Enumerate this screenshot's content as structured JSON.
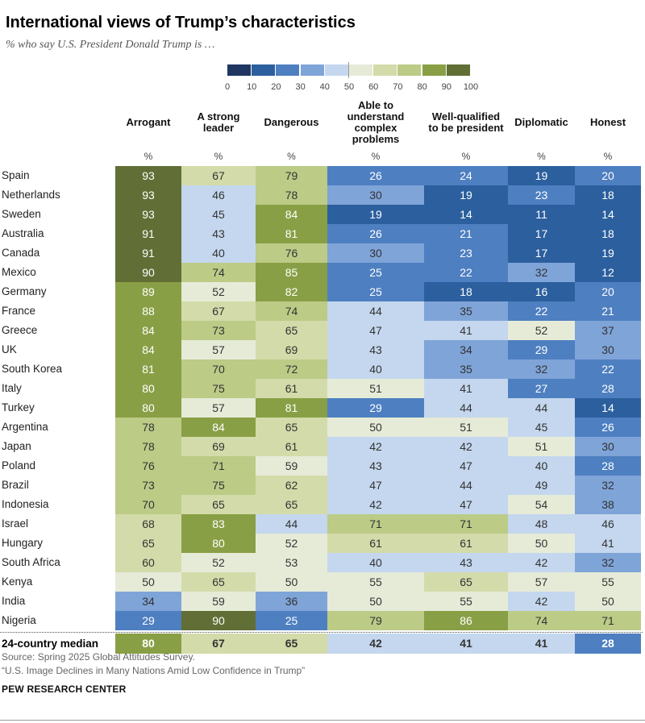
{
  "title": "International views of Trump’s characteristics",
  "subtitle": "% who say U.S. President Donald Trump is …",
  "legend": {
    "ticks": [
      "0",
      "10",
      "20",
      "30",
      "40",
      "50",
      "60",
      "70",
      "80",
      "90",
      "100"
    ],
    "colors": [
      "#1f3661",
      "#2c5f9e",
      "#4e7fc1",
      "#7fa4d8",
      "#c4d7ee",
      "#e6ebd8",
      "#d3dbaa",
      "#bccb86",
      "#899f45",
      "#616e35"
    ]
  },
  "chart_data": {
    "type": "table",
    "title": "International views of Trump’s characteristics",
    "subtitle": "% who say U.S. President Donald Trump is …",
    "unit_label": "%",
    "columns": [
      "Arrogant",
      "A strong leader",
      "Dangerous",
      "Able to understand complex problems",
      "Well-qualified to be president",
      "Diplomatic",
      "Honest"
    ],
    "rows": [
      {
        "country": "Spain",
        "values": [
          93,
          67,
          79,
          26,
          24,
          19,
          20
        ]
      },
      {
        "country": "Netherlands",
        "values": [
          93,
          46,
          78,
          30,
          19,
          23,
          18
        ]
      },
      {
        "country": "Sweden",
        "values": [
          93,
          45,
          84,
          19,
          14,
          11,
          14
        ]
      },
      {
        "country": "Australia",
        "values": [
          91,
          43,
          81,
          26,
          21,
          17,
          18
        ]
      },
      {
        "country": "Canada",
        "values": [
          91,
          40,
          76,
          30,
          23,
          17,
          19
        ]
      },
      {
        "country": "Mexico",
        "values": [
          90,
          74,
          85,
          25,
          22,
          32,
          12
        ]
      },
      {
        "country": "Germany",
        "values": [
          89,
          52,
          82,
          25,
          18,
          16,
          20
        ]
      },
      {
        "country": "France",
        "values": [
          88,
          67,
          74,
          44,
          35,
          22,
          21
        ]
      },
      {
        "country": "Greece",
        "values": [
          84,
          73,
          65,
          47,
          41,
          52,
          37
        ]
      },
      {
        "country": "UK",
        "values": [
          84,
          57,
          69,
          43,
          34,
          29,
          30
        ]
      },
      {
        "country": "South Korea",
        "values": [
          81,
          70,
          72,
          40,
          35,
          32,
          22
        ]
      },
      {
        "country": "Italy",
        "values": [
          80,
          75,
          61,
          51,
          41,
          27,
          28
        ]
      },
      {
        "country": "Turkey",
        "values": [
          80,
          57,
          81,
          29,
          44,
          44,
          14
        ]
      },
      {
        "country": "Argentina",
        "values": [
          78,
          84,
          65,
          50,
          51,
          45,
          26
        ]
      },
      {
        "country": "Japan",
        "values": [
          78,
          69,
          61,
          42,
          42,
          51,
          30
        ]
      },
      {
        "country": "Poland",
        "values": [
          76,
          71,
          59,
          43,
          47,
          40,
          28
        ]
      },
      {
        "country": "Brazil",
        "values": [
          73,
          75,
          62,
          47,
          44,
          49,
          32
        ]
      },
      {
        "country": "Indonesia",
        "values": [
          70,
          65,
          65,
          42,
          47,
          54,
          38
        ]
      },
      {
        "country": "Israel",
        "values": [
          68,
          83,
          44,
          71,
          71,
          48,
          46
        ]
      },
      {
        "country": "Hungary",
        "values": [
          65,
          80,
          52,
          61,
          61,
          50,
          41
        ]
      },
      {
        "country": "South Africa",
        "values": [
          60,
          52,
          53,
          40,
          43,
          42,
          32
        ]
      },
      {
        "country": "Kenya",
        "values": [
          50,
          65,
          50,
          55,
          65,
          57,
          55
        ]
      },
      {
        "country": "India",
        "values": [
          34,
          59,
          36,
          50,
          55,
          42,
          50
        ]
      },
      {
        "country": "Nigeria",
        "values": [
          29,
          90,
          25,
          79,
          86,
          74,
          71
        ]
      }
    ],
    "median": {
      "label": "24-country median",
      "values": [
        80,
        67,
        65,
        42,
        41,
        41,
        28
      ]
    }
  },
  "source": "Source: Spring 2025 Global Attitudes Survey.",
  "note": "“U.S. Image Declines in Many Nations Amid Low Confidence in Trump”",
  "brand": "PEW RESEARCH CENTER"
}
